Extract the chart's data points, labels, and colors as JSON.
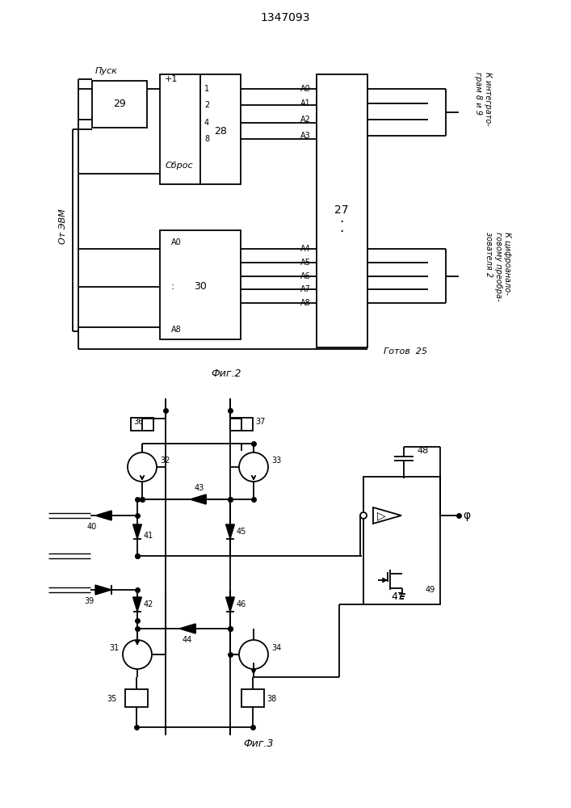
{
  "title": "1347093",
  "fig2_label": "Фиг.2",
  "fig3_label": "Фиг.3",
  "bg_color": "#ffffff",
  "line_color": "#000000",
  "lw": 1.3,
  "text_integ": "К интеграто-\nграм 8 и 9",
  "text_dac": "К цифроанало-\nговому преобра-\nзователя 2",
  "text_otEVM": "От ЭВМ",
  "text_pusk": "Пуск",
  "text_sbros": "Сброс",
  "text_gotov": "Готов  25"
}
